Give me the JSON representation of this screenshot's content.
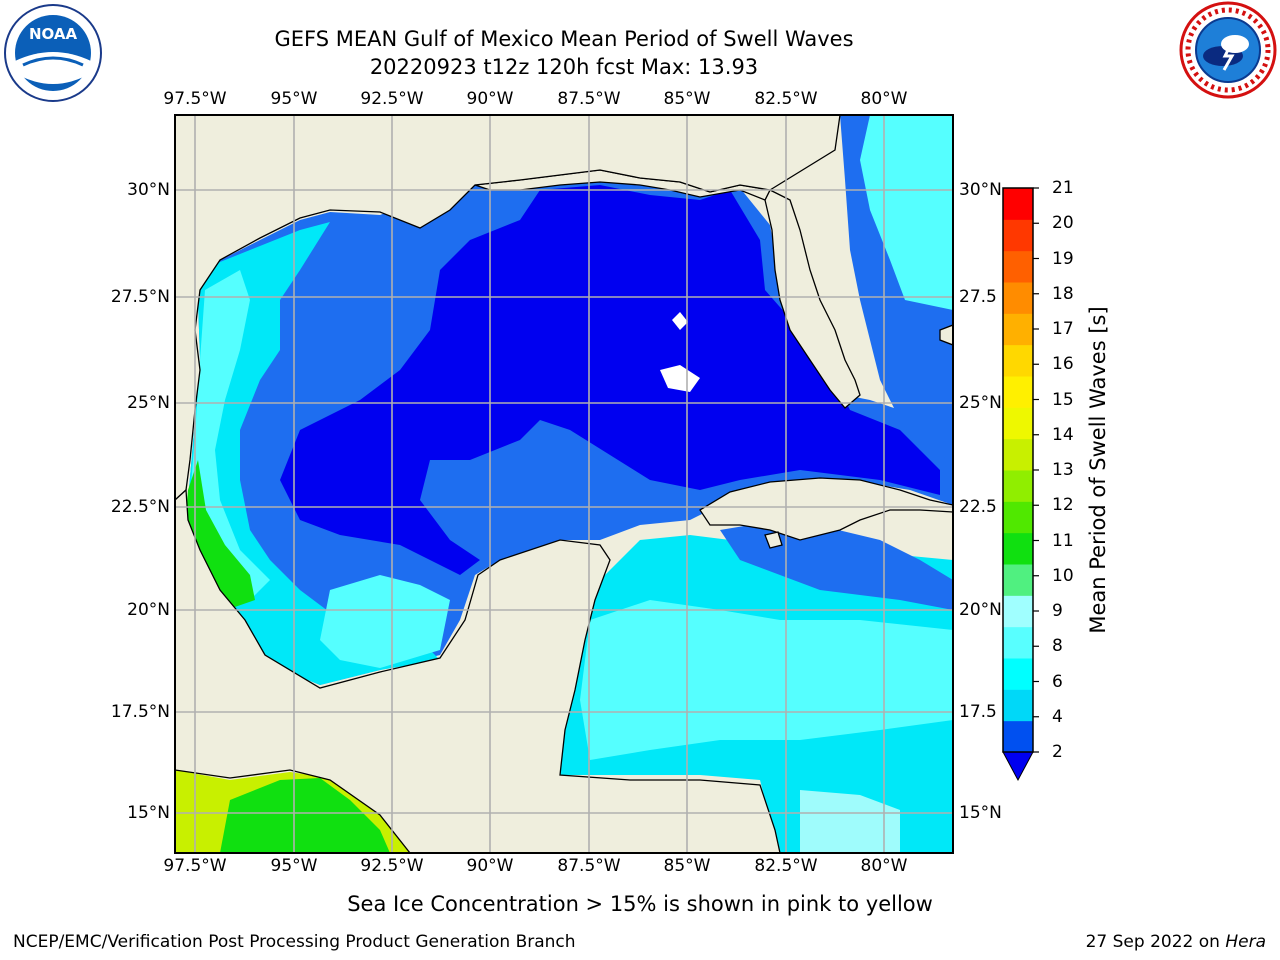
{
  "title": {
    "line1": "GEFS MEAN Gulf of Mexico Mean Period of Swell Waves",
    "line2": "20220923 t12z 120h fcst   Max: 13.93"
  },
  "logos": {
    "left": {
      "icon": "noaa-logo",
      "text": "NOAA"
    },
    "right": {
      "icon": "national-weather-service-logo"
    }
  },
  "map": {
    "lon_labels": [
      "97.5°W",
      "95°W",
      "92.5°W",
      "90°W",
      "87.5°W",
      "85°W",
      "82.5°W",
      "80°W"
    ],
    "lat_labels_left": [
      "30°N",
      "27.5°N",
      "25°N",
      "22.5°N",
      "20°N",
      "17.5°N",
      "15°N"
    ],
    "lat_labels_right": [
      "30°N",
      "27.5",
      "25°N",
      "22.5",
      "20°N",
      "17.5",
      "15°N"
    ],
    "colors": {
      "land": "#efeedd",
      "coast": "#000000",
      "grid": "#b0b0b0",
      "deep_blue": "#0000f0",
      "mid_blue": "#1e6ef0",
      "cyan": "#00e8f8",
      "light_cyan": "#55ffff",
      "pale_cyan": "#9ffcfc",
      "green": "#10e010",
      "yellow_green": "#c8f000"
    }
  },
  "colorbar": {
    "label": "Mean Period of Swell Waves [s]",
    "ticks": [
      "21",
      "20",
      "19",
      "18",
      "17",
      "16",
      "15",
      "14",
      "13",
      "12",
      "11",
      "10",
      "9",
      "8",
      "6",
      "4",
      "2"
    ],
    "colors_bottom_to_top": [
      "#0050f0",
      "#00d8f8",
      "#00ffff",
      "#58ffff",
      "#a0ffff",
      "#50f080",
      "#10e010",
      "#50e800",
      "#90ee00",
      "#c8f000",
      "#eef800",
      "#fff000",
      "#ffd800",
      "#ffb000",
      "#ff8c00",
      "#ff6000",
      "#ff3800",
      "#ff0000"
    ],
    "extend_color": "#0000f0"
  },
  "caption": "Sea Ice Concentration > 15% is shown in pink to yellow",
  "footer": {
    "left": "NCEP/EMC/Verification Post Processing Product Generation Branch",
    "date": "27 Sep 2022 on",
    "machine": "Hera"
  }
}
